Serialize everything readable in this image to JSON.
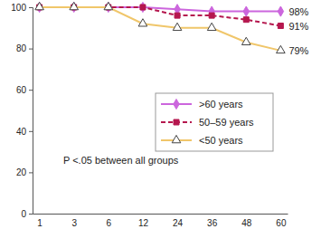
{
  "chart_data": {
    "type": "line",
    "categories": [
      "1",
      "3",
      "6",
      "12",
      "24",
      "36",
      "48",
      "60"
    ],
    "series": [
      {
        "name": ">60 years",
        "color": "#cc66dd",
        "marker": "diamond",
        "line_style": "solid",
        "values": [
          100,
          100,
          100,
          100,
          99,
          98,
          98,
          98
        ],
        "value_labels": [
          null,
          null,
          null,
          null,
          null,
          null,
          null,
          "98%"
        ]
      },
      {
        "name": "50–59 years",
        "color": "#b5174e",
        "marker": "square",
        "line_style": "dashed",
        "values": [
          100,
          100,
          100,
          100,
          96,
          96,
          94,
          91
        ],
        "value_labels": [
          null,
          null,
          null,
          null,
          null,
          null,
          null,
          "91%"
        ]
      },
      {
        "name": "<50 years",
        "color": "#f0c66a",
        "marker": "triangle",
        "line_style": "solid",
        "values": [
          100,
          100,
          100,
          92,
          90,
          90,
          83,
          79
        ],
        "value_labels": [
          null,
          null,
          null,
          null,
          null,
          null,
          null,
          "79%"
        ]
      }
    ],
    "ylim": [
      0,
      100
    ],
    "yticks": [
      0,
      20,
      40,
      60,
      80,
      100
    ],
    "annotations": [
      "P <.05 between all groups"
    ],
    "data_labels": true,
    "legend": "right",
    "grid": false
  }
}
